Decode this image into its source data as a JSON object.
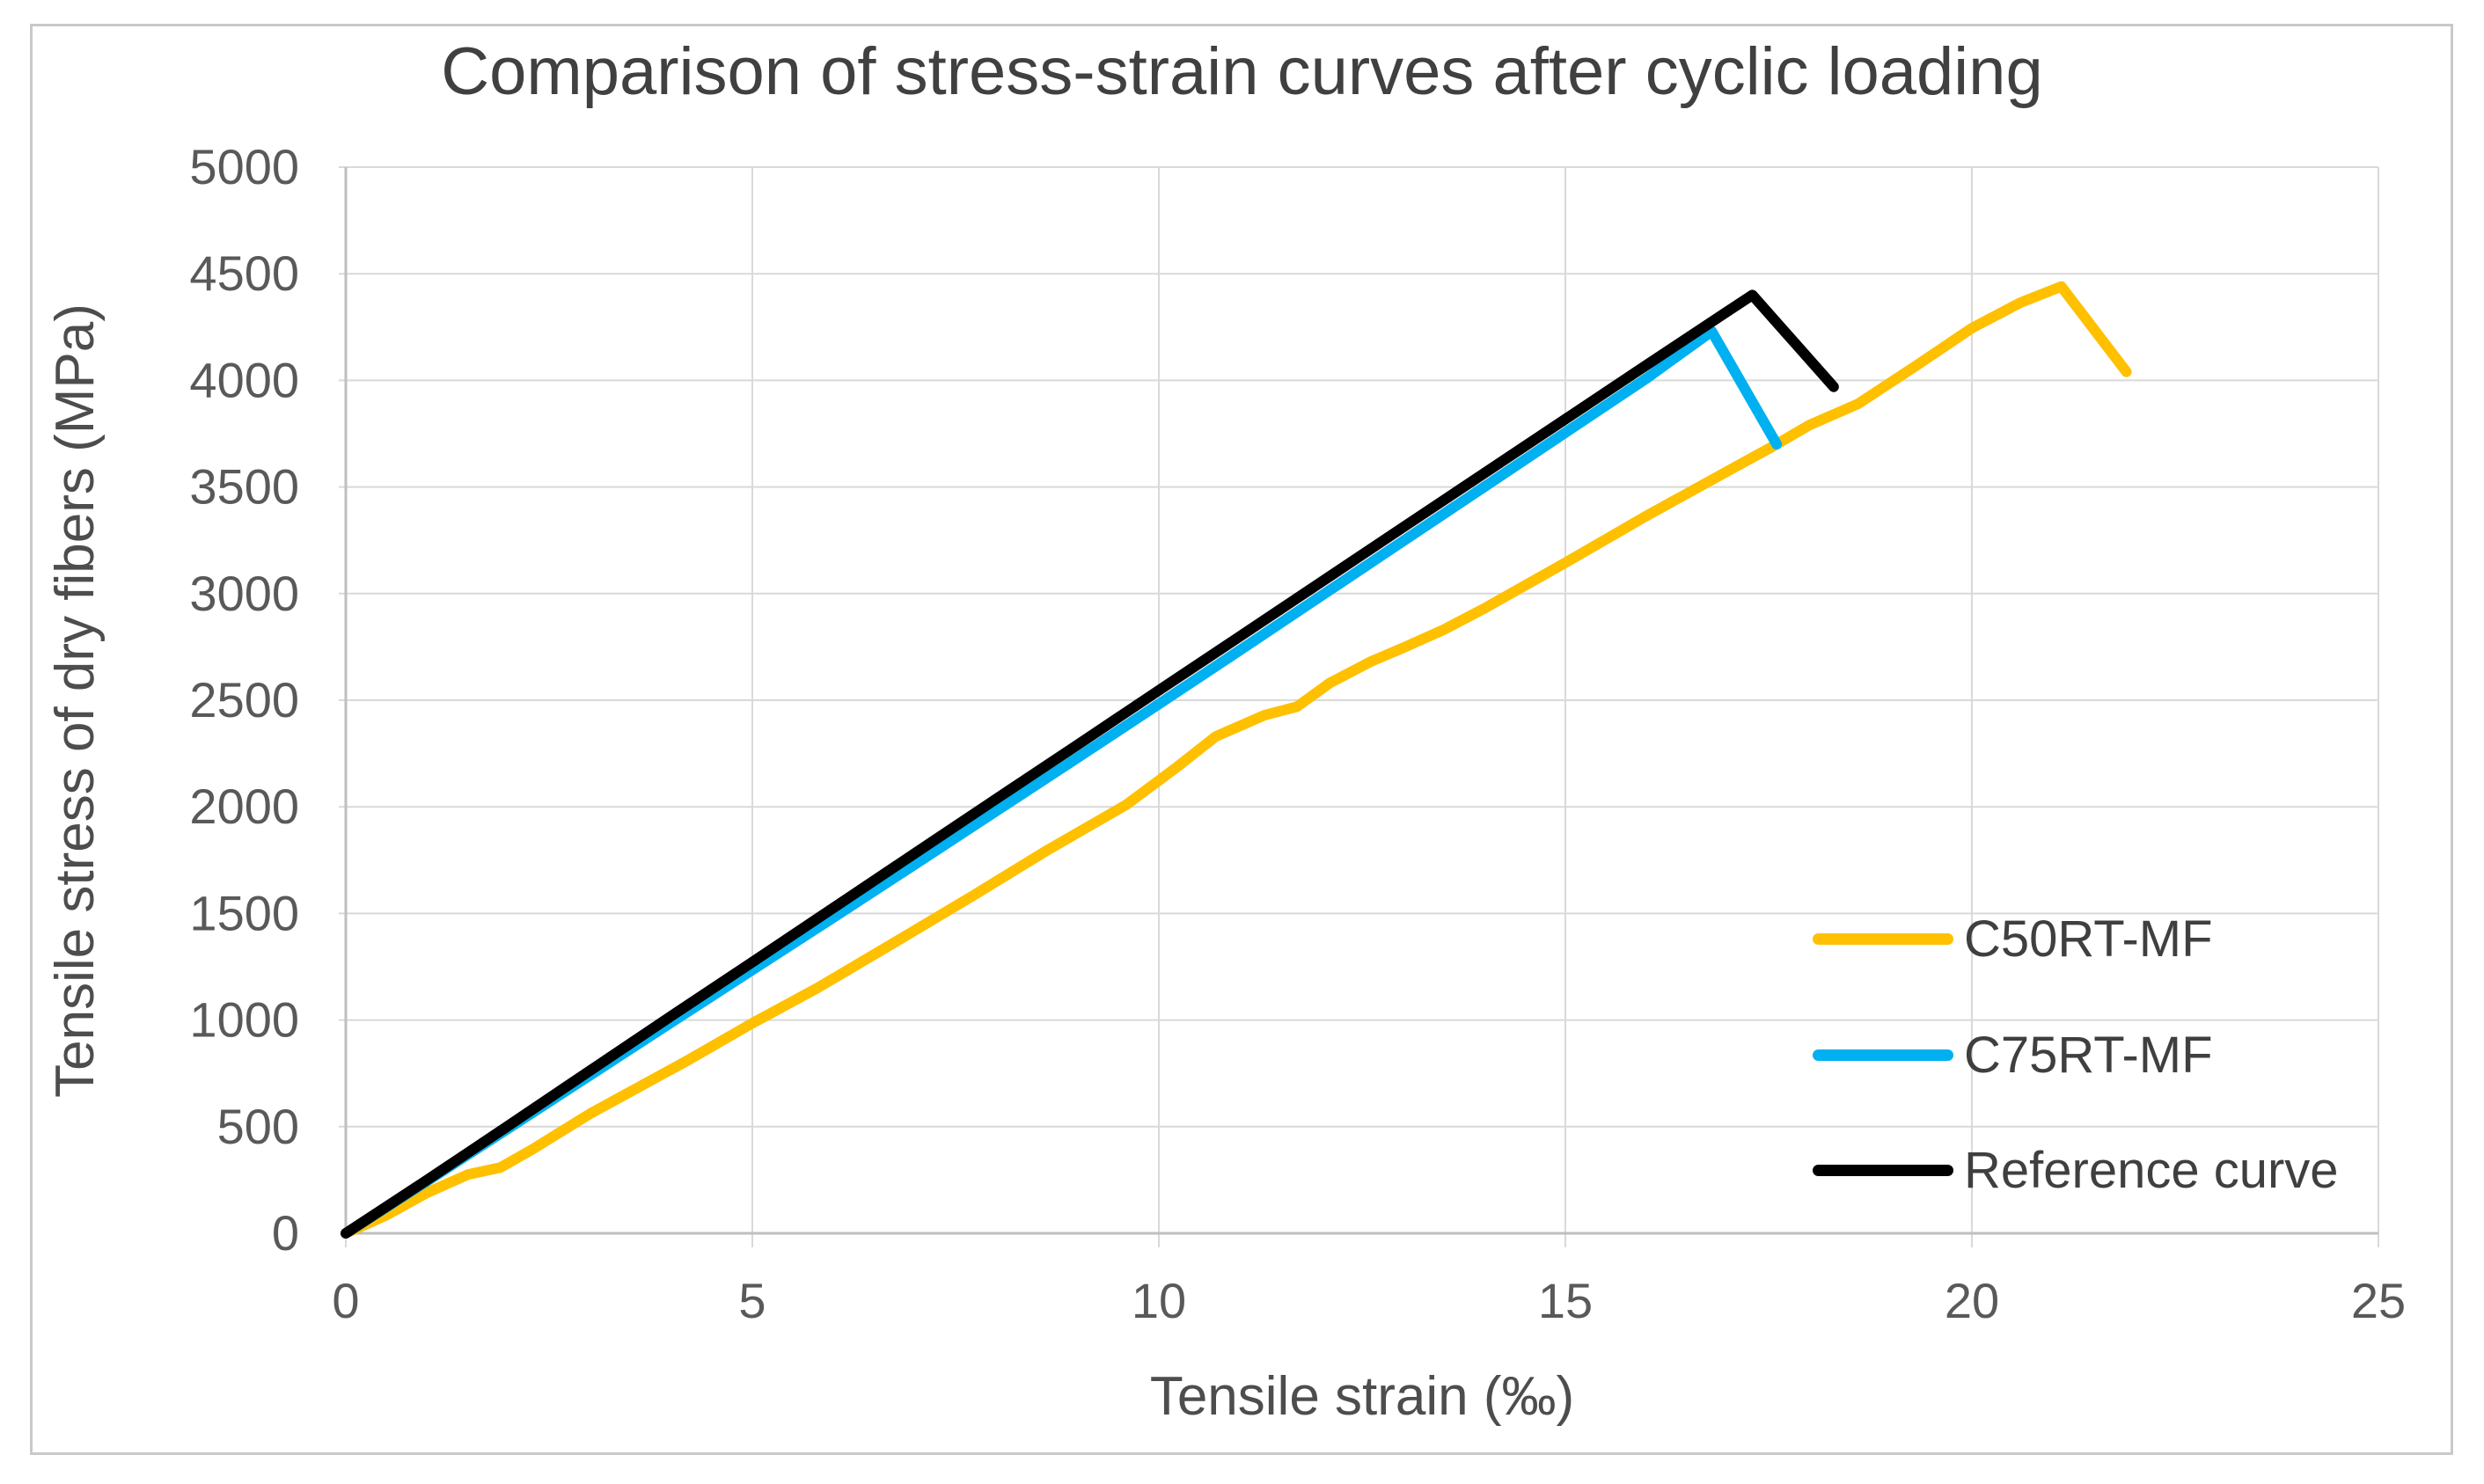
{
  "chart_data": {
    "type": "line",
    "title": "Comparison of stress-strain curves after cyclic loading",
    "xlabel": "Tensile strain (‰)",
    "ylabel": "Tensile stress of dry fibers (MPa)",
    "xlim": [
      0,
      25
    ],
    "ylim": [
      0,
      5000
    ],
    "xticks": [
      0,
      5,
      10,
      15,
      20,
      25
    ],
    "yticks": [
      0,
      500,
      1000,
      1500,
      2000,
      2500,
      3000,
      3500,
      4000,
      4500,
      5000
    ],
    "grid": true,
    "legend_position": "inside-right",
    "colors": {
      "grid": "#d9d9d9",
      "axis": "#bfbfbf",
      "tick_text": "#595959",
      "title_text": "#404040",
      "axis_title_text": "#4d4d4d",
      "legend_text": "#3f3f3f"
    },
    "series": [
      {
        "name": "C50RT-MF",
        "color": "#FFC000",
        "points": [
          [
            0,
            0
          ],
          [
            0.5,
            85
          ],
          [
            1.0,
            190
          ],
          [
            1.5,
            275
          ],
          [
            1.9,
            308
          ],
          [
            2.3,
            395
          ],
          [
            3.0,
            560
          ],
          [
            4.2,
            810
          ],
          [
            5.0,
            985
          ],
          [
            5.8,
            1150
          ],
          [
            6.6,
            1330
          ],
          [
            7.7,
            1580
          ],
          [
            8.6,
            1790
          ],
          [
            9.6,
            2010
          ],
          [
            10.2,
            2180
          ],
          [
            10.7,
            2330
          ],
          [
            11.3,
            2430
          ],
          [
            11.7,
            2470
          ],
          [
            12.1,
            2580
          ],
          [
            12.6,
            2680
          ],
          [
            13.0,
            2745
          ],
          [
            13.5,
            2830
          ],
          [
            14.0,
            2930
          ],
          [
            15.0,
            3145
          ],
          [
            16.0,
            3365
          ],
          [
            17.0,
            3575
          ],
          [
            17.55,
            3690
          ],
          [
            18.0,
            3790
          ],
          [
            18.6,
            3890
          ],
          [
            19.3,
            4065
          ],
          [
            20.0,
            4245
          ],
          [
            20.6,
            4365
          ],
          [
            21.1,
            4440
          ],
          [
            21.9,
            4040
          ]
        ]
      },
      {
        "name": "C75RT-MF",
        "color": "#00B0F0",
        "points": [
          [
            0,
            0
          ],
          [
            1,
            245
          ],
          [
            2,
            492
          ],
          [
            3,
            740
          ],
          [
            4,
            988
          ],
          [
            5,
            1235
          ],
          [
            6,
            1482
          ],
          [
            7,
            1730
          ],
          [
            8,
            1980
          ],
          [
            9,
            2230
          ],
          [
            10,
            2482
          ],
          [
            11,
            2735
          ],
          [
            12,
            2990
          ],
          [
            13,
            3245
          ],
          [
            14,
            3500
          ],
          [
            15,
            3755
          ],
          [
            16,
            4010
          ],
          [
            16.8,
            4230
          ],
          [
            17.6,
            3700
          ]
        ]
      },
      {
        "name": "Reference curve",
        "color": "#000000",
        "points": [
          [
            0,
            0
          ],
          [
            1,
            250
          ],
          [
            2,
            505
          ],
          [
            3,
            762
          ],
          [
            4,
            1018
          ],
          [
            5,
            1272
          ],
          [
            6,
            1527
          ],
          [
            7,
            1782
          ],
          [
            8,
            2037
          ],
          [
            9,
            2291
          ],
          [
            10,
            2546
          ],
          [
            11,
            2800
          ],
          [
            12,
            3055
          ],
          [
            13,
            3310
          ],
          [
            14,
            3564
          ],
          [
            15,
            3818
          ],
          [
            16,
            4072
          ],
          [
            17,
            4325
          ],
          [
            17.3,
            4400
          ],
          [
            18.3,
            3970
          ]
        ]
      }
    ]
  }
}
